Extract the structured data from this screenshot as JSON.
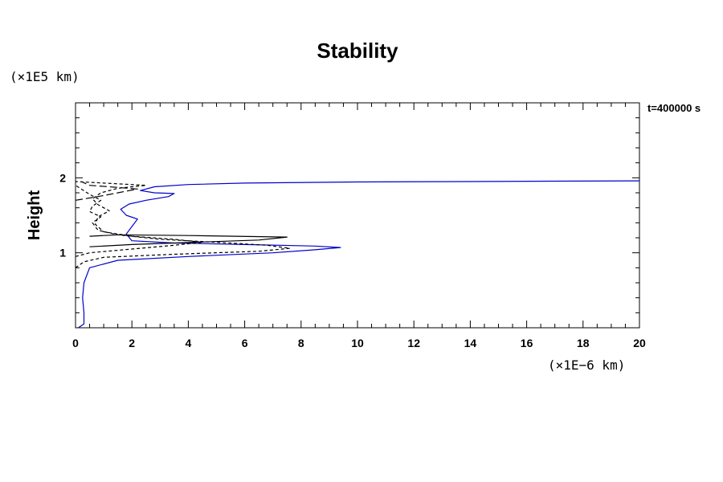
{
  "chart_data": {
    "type": "line",
    "title": "Stability",
    "ylabel": "Height",
    "xlabel": "",
    "y_unit": "(×1E5 km)",
    "x_unit": "(×1E−6 km)",
    "annotation": "t=400000 s",
    "xlim": [
      0,
      20
    ],
    "ylim": [
      0,
      3
    ],
    "x_ticks": [
      "0",
      "2",
      "4",
      "6",
      "8",
      "10",
      "12",
      "14",
      "16",
      "18",
      "20"
    ],
    "y_ticks": [
      "1",
      "2"
    ],
    "grid": false,
    "series": [
      {
        "style": "solid",
        "color": "#0000cc",
        "points": [
          [
            0.1,
            0.0
          ],
          [
            0.3,
            0.05
          ],
          [
            0.3,
            0.2
          ],
          [
            0.25,
            0.4
          ],
          [
            0.3,
            0.6
          ],
          [
            0.5,
            0.8
          ],
          [
            1.5,
            0.9
          ],
          [
            4.0,
            0.95
          ],
          [
            7.0,
            1.0
          ],
          [
            8.5,
            1.04
          ],
          [
            9.4,
            1.07
          ],
          [
            8.5,
            1.09
          ],
          [
            6.0,
            1.11
          ],
          [
            3.5,
            1.13
          ],
          [
            2.0,
            1.16
          ],
          [
            1.8,
            1.25
          ],
          [
            2.0,
            1.35
          ],
          [
            2.2,
            1.45
          ],
          [
            1.8,
            1.5
          ],
          [
            1.6,
            1.58
          ],
          [
            1.9,
            1.65
          ],
          [
            2.5,
            1.7
          ],
          [
            3.3,
            1.75
          ],
          [
            3.5,
            1.79
          ],
          [
            2.8,
            1.8
          ],
          [
            2.3,
            1.83
          ],
          [
            2.8,
            1.88
          ],
          [
            4.0,
            1.91
          ],
          [
            6.0,
            1.93
          ],
          [
            10.0,
            1.945
          ],
          [
            14.0,
            1.95
          ],
          [
            17.0,
            1.955
          ],
          [
            20.0,
            1.96
          ]
        ]
      },
      {
        "style": "solid",
        "color": "#000000",
        "points": [
          [
            0.5,
            1.08
          ],
          [
            2.0,
            1.11
          ],
          [
            3.5,
            1.13
          ],
          [
            6.5,
            1.17
          ],
          [
            7.5,
            1.21
          ],
          [
            4.0,
            1.23
          ],
          [
            1.5,
            1.24
          ],
          [
            0.5,
            1.22
          ]
        ]
      },
      {
        "style": "dashed",
        "color": "#000000",
        "points": [
          [
            0.0,
            0.8
          ],
          [
            0.3,
            0.88
          ],
          [
            1.0,
            0.94
          ],
          [
            3.5,
            0.98
          ],
          [
            6.5,
            1.02
          ],
          [
            7.6,
            1.06
          ],
          [
            6.8,
            1.1
          ],
          [
            5.0,
            1.14
          ],
          [
            3.0,
            1.18
          ],
          [
            1.5,
            1.24
          ],
          [
            0.8,
            1.3
          ],
          [
            0.6,
            1.4
          ],
          [
            0.9,
            1.48
          ],
          [
            0.5,
            1.55
          ],
          [
            0.6,
            1.62
          ],
          [
            0.9,
            1.7
          ],
          [
            0.5,
            1.78
          ],
          [
            0.0,
            1.9
          ]
        ]
      },
      {
        "style": "dashed",
        "color": "#000000",
        "points": [
          [
            0.0,
            0.95
          ],
          [
            0.5,
            1.0
          ],
          [
            2.0,
            1.05
          ],
          [
            3.5,
            1.1
          ],
          [
            4.5,
            1.14
          ],
          [
            3.5,
            1.18
          ],
          [
            2.0,
            1.22
          ],
          [
            1.0,
            1.28
          ],
          [
            0.7,
            1.38
          ],
          [
            0.8,
            1.48
          ],
          [
            1.2,
            1.56
          ],
          [
            0.8,
            1.64
          ],
          [
            0.6,
            1.72
          ],
          [
            0.9,
            1.8
          ],
          [
            1.5,
            1.86
          ],
          [
            2.5,
            1.9
          ],
          [
            1.0,
            1.93
          ],
          [
            0.0,
            1.95
          ]
        ]
      },
      {
        "style": "longdash",
        "color": "#000000",
        "points": [
          [
            0.0,
            1.7
          ],
          [
            0.8,
            1.75
          ],
          [
            1.5,
            1.8
          ],
          [
            2.2,
            1.85
          ],
          [
            1.2,
            1.88
          ],
          [
            0.5,
            1.9
          ],
          [
            0.2,
            1.95
          ]
        ]
      }
    ]
  }
}
